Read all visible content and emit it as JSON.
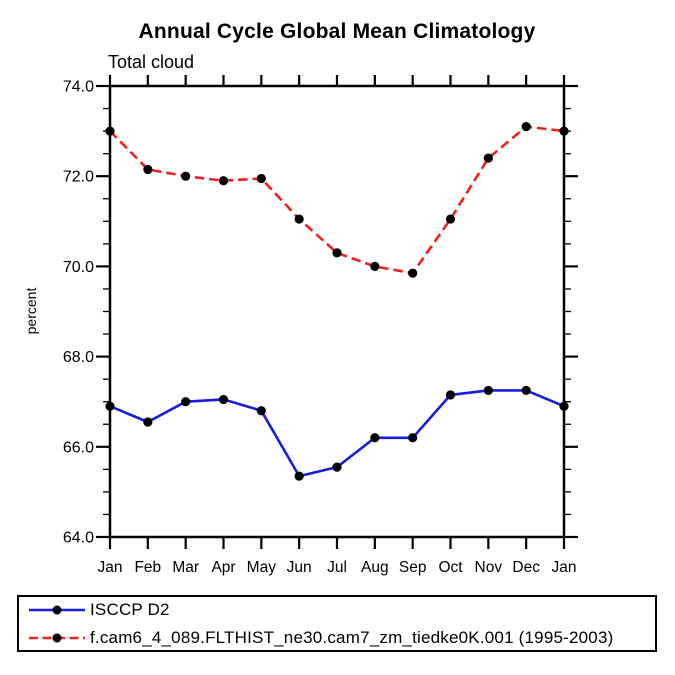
{
  "chart": {
    "title": "Annual Cycle Global Mean Climatology",
    "subtitle": "Total cloud",
    "ylabel": "percent"
  },
  "chart_data": {
    "type": "line",
    "title": "Annual Cycle Global Mean Climatology",
    "subtitle": "Total cloud",
    "xlabel": "",
    "ylabel": "percent",
    "categories": [
      "Jan",
      "Feb",
      "Mar",
      "Apr",
      "May",
      "Jun",
      "Jul",
      "Aug",
      "Sep",
      "Oct",
      "Nov",
      "Dec",
      "Jan"
    ],
    "ylim": [
      64.0,
      74.0
    ],
    "ytick_major": 2.0,
    "ytick_minor": 0.5,
    "ytick_labels": [
      "64.0",
      "66.0",
      "68.0",
      "70.0",
      "72.0",
      "74.0"
    ],
    "grid": false,
    "frame_color": "#000000",
    "marker_color": "#000000",
    "legend_position": "bottom-left-box",
    "series": [
      {
        "name": "ISCCP D2",
        "color": "#1a1ae0",
        "style": "solid",
        "marker": "filled-circle",
        "values": [
          66.9,
          66.55,
          67.0,
          67.05,
          66.8,
          65.35,
          65.55,
          66.2,
          66.2,
          67.15,
          67.25,
          67.25,
          66.9
        ]
      },
      {
        "name": "f.cam6_4_089.FLTHIST_ne30.cam7_zm_tiedke0K.001 (1995-2003)",
        "color": "#ef2020",
        "style": "dashed",
        "marker": "filled-circle",
        "values": [
          73.0,
          72.15,
          72.0,
          71.9,
          71.95,
          71.05,
          70.3,
          70.0,
          69.85,
          71.05,
          72.4,
          73.1,
          73.0
        ]
      }
    ]
  }
}
